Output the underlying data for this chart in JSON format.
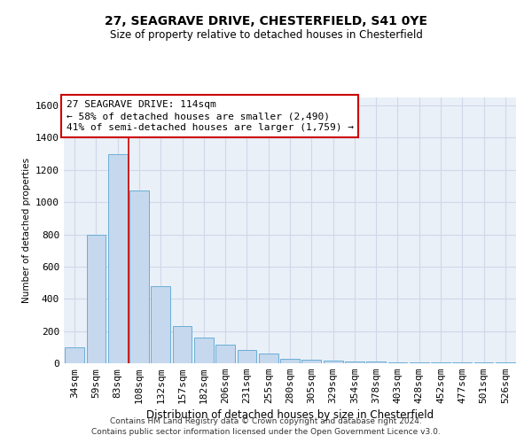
{
  "title": "27, SEAGRAVE DRIVE, CHESTERFIELD, S41 0YE",
  "subtitle": "Size of property relative to detached houses in Chesterfield",
  "xlabel": "Distribution of detached houses by size in Chesterfield",
  "ylabel": "Number of detached properties",
  "footer_line1": "Contains HM Land Registry data © Crown copyright and database right 2024.",
  "footer_line2": "Contains public sector information licensed under the Open Government Licence v3.0.",
  "categories": [
    "34sqm",
    "59sqm",
    "83sqm",
    "108sqm",
    "132sqm",
    "157sqm",
    "182sqm",
    "206sqm",
    "231sqm",
    "255sqm",
    "280sqm",
    "305sqm",
    "329sqm",
    "354sqm",
    "378sqm",
    "403sqm",
    "428sqm",
    "452sqm",
    "477sqm",
    "501sqm",
    "526sqm"
  ],
  "values": [
    100,
    800,
    1300,
    1075,
    480,
    230,
    160,
    115,
    85,
    60,
    30,
    20,
    15,
    10,
    10,
    5,
    5,
    5,
    5,
    5,
    5
  ],
  "bar_color": "#c5d8ed",
  "bar_edge_color": "#6aaed6",
  "ylim": [
    0,
    1650
  ],
  "yticks": [
    0,
    200,
    400,
    600,
    800,
    1000,
    1200,
    1400,
    1600
  ],
  "annotation_title": "27 SEAGRAVE DRIVE: 114sqm",
  "annotation_line1": "← 58% of detached houses are smaller (2,490)",
  "annotation_line2": "41% of semi-detached houses are larger (1,759) →",
  "vline_x_index": 2.5,
  "annotation_box_color": "#ffffff",
  "annotation_box_edge_color": "#cc0000",
  "grid_color": "#d0d8e8",
  "background_color": "#eaf0f8"
}
